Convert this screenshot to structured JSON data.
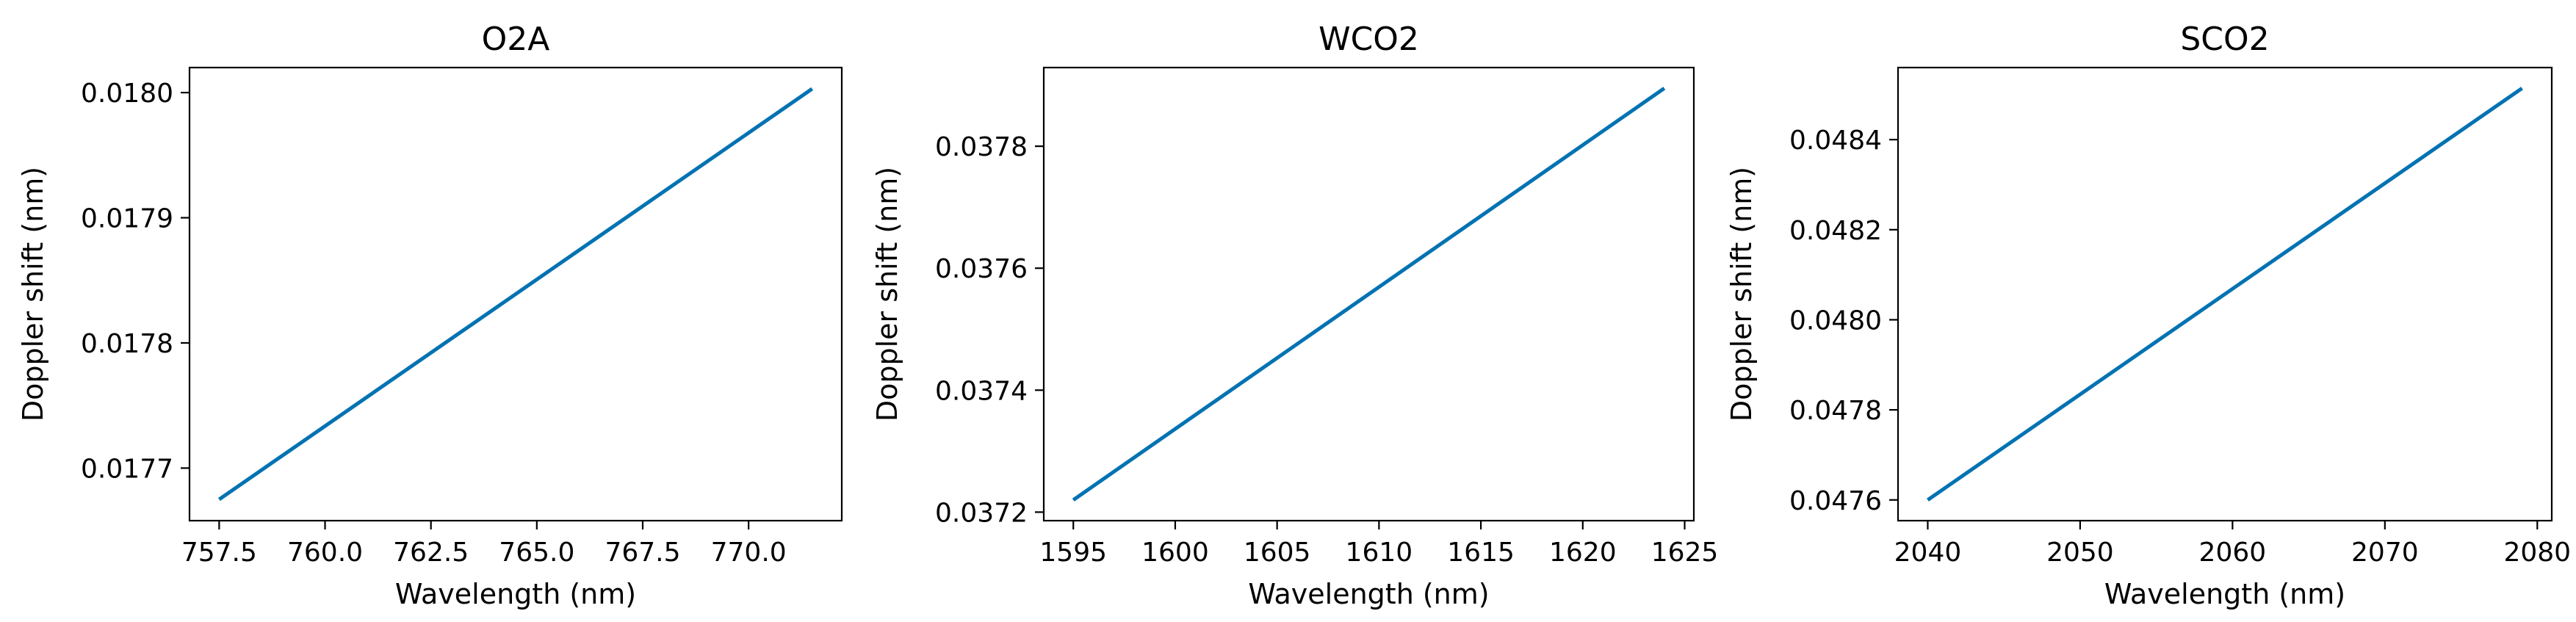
{
  "chart_data": [
    {
      "type": "line",
      "title": "O2A",
      "xlabel": "Wavelength (nm)",
      "ylabel": "Doppler shift (nm)",
      "x": [
        757.5,
        771.5
      ],
      "series": [
        {
          "name": "O2A",
          "values": [
            0.017675,
            0.018003
          ]
        }
      ],
      "xlim": [
        756.8,
        772.2
      ],
      "ylim": [
        0.017658,
        0.01802
      ],
      "xticks": [
        757.5,
        760.0,
        762.5,
        765.0,
        767.5,
        770.0
      ],
      "xtick_labels": [
        "757.5",
        "760.0",
        "762.5",
        "765.0",
        "767.5",
        "770.0"
      ],
      "yticks": [
        0.0177,
        0.0178,
        0.0179,
        0.018
      ],
      "ytick_labels": [
        "0.0177",
        "0.0178",
        "0.0179",
        "0.0180"
      ],
      "grid": false
    },
    {
      "type": "line",
      "title": "WCO2",
      "xlabel": "Wavelength (nm)",
      "ylabel": "Doppler shift (nm)",
      "x": [
        1595,
        1624
      ],
      "series": [
        {
          "name": "WCO2",
          "values": [
            0.03722,
            0.037895
          ]
        }
      ],
      "xlim": [
        1593.55,
        1625.45
      ],
      "ylim": [
        0.037186,
        0.037929
      ],
      "xticks": [
        1595,
        1600,
        1605,
        1610,
        1615,
        1620,
        1625
      ],
      "xtick_labels": [
        "1595",
        "1600",
        "1605",
        "1610",
        "1615",
        "1620",
        "1625"
      ],
      "yticks": [
        0.0372,
        0.0374,
        0.0376,
        0.0378
      ],
      "ytick_labels": [
        "0.0372",
        "0.0374",
        "0.0376",
        "0.0378"
      ],
      "grid": false
    },
    {
      "type": "line",
      "title": "SCO2",
      "xlabel": "Wavelength (nm)",
      "ylabel": "Doppler shift (nm)",
      "x": [
        2040,
        2079
      ],
      "series": [
        {
          "name": "SCO2",
          "values": [
            0.0476,
            0.048514
          ]
        }
      ],
      "xlim": [
        2038.05,
        2080.95
      ],
      "ylim": [
        0.047554,
        0.04856
      ],
      "xticks": [
        2040,
        2050,
        2060,
        2070,
        2080
      ],
      "xtick_labels": [
        "2040",
        "2050",
        "2060",
        "2070",
        "2080"
      ],
      "yticks": [
        0.0476,
        0.0478,
        0.048,
        0.0482,
        0.0484
      ],
      "ytick_labels": [
        "0.0476",
        "0.0478",
        "0.0480",
        "0.0482",
        "0.0484"
      ],
      "grid": false
    }
  ],
  "colors": {
    "line": "#0072B2",
    "axis": "#000000",
    "background": "#ffffff"
  }
}
